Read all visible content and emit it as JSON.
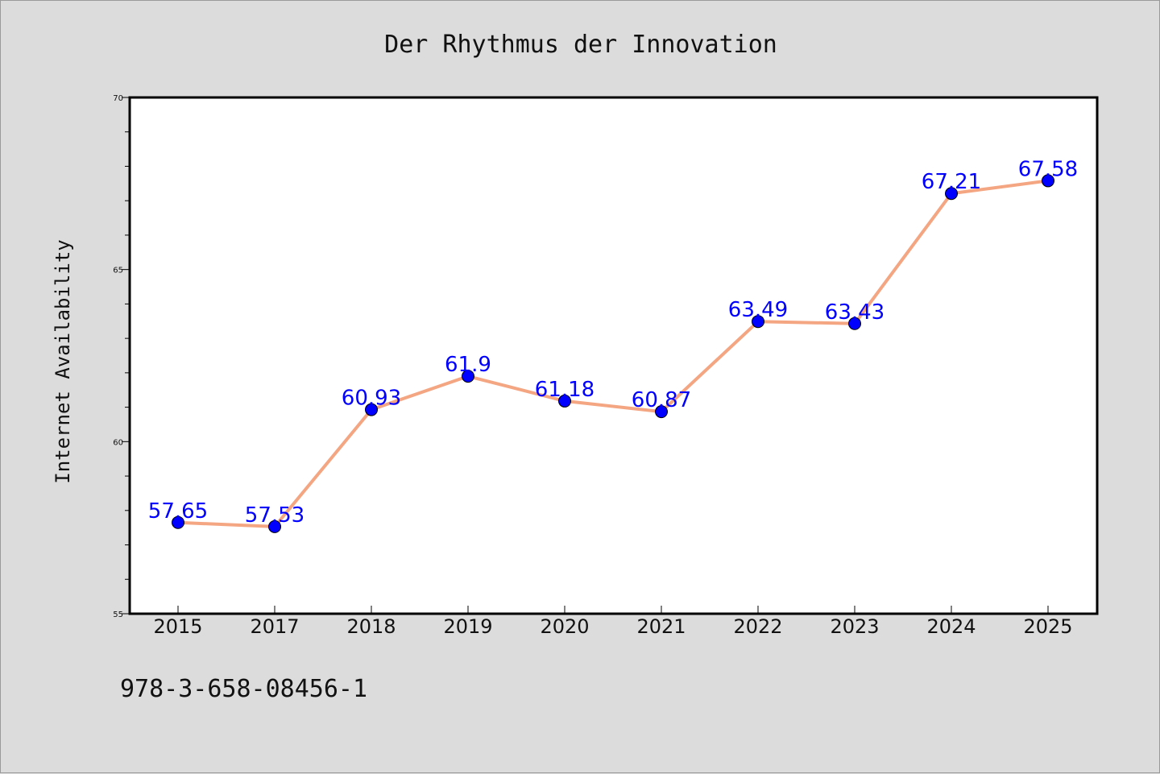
{
  "colors": {
    "background": "#dcdcdc",
    "plot_background": "#ffffff",
    "line": "#f4a582",
    "marker": "#0000ff",
    "data_label": "#0000ff"
  },
  "footer": {
    "isbn": "978-3-658-08456-1"
  },
  "chart_data": {
    "type": "line",
    "title": "Der Rhythmus der Innovation",
    "xlabel": "",
    "ylabel": "Internet Availability",
    "categories": [
      "2015",
      "2017",
      "2018",
      "2019",
      "2020",
      "2021",
      "2022",
      "2023",
      "2024",
      "2025"
    ],
    "values": [
      57.65,
      57.53,
      60.93,
      61.9,
      61.18,
      60.87,
      63.49,
      63.43,
      67.21,
      67.58
    ],
    "value_labels": [
      "57.65",
      "57.53",
      "60.93",
      "61.9",
      "61.18",
      "60.87",
      "63.49",
      "63.43",
      "67.21",
      "67.58"
    ],
    "ylim": [
      55,
      70
    ],
    "yticks": [
      "55",
      "60",
      "65",
      "70"
    ],
    "grid": false,
    "legend": "none"
  }
}
